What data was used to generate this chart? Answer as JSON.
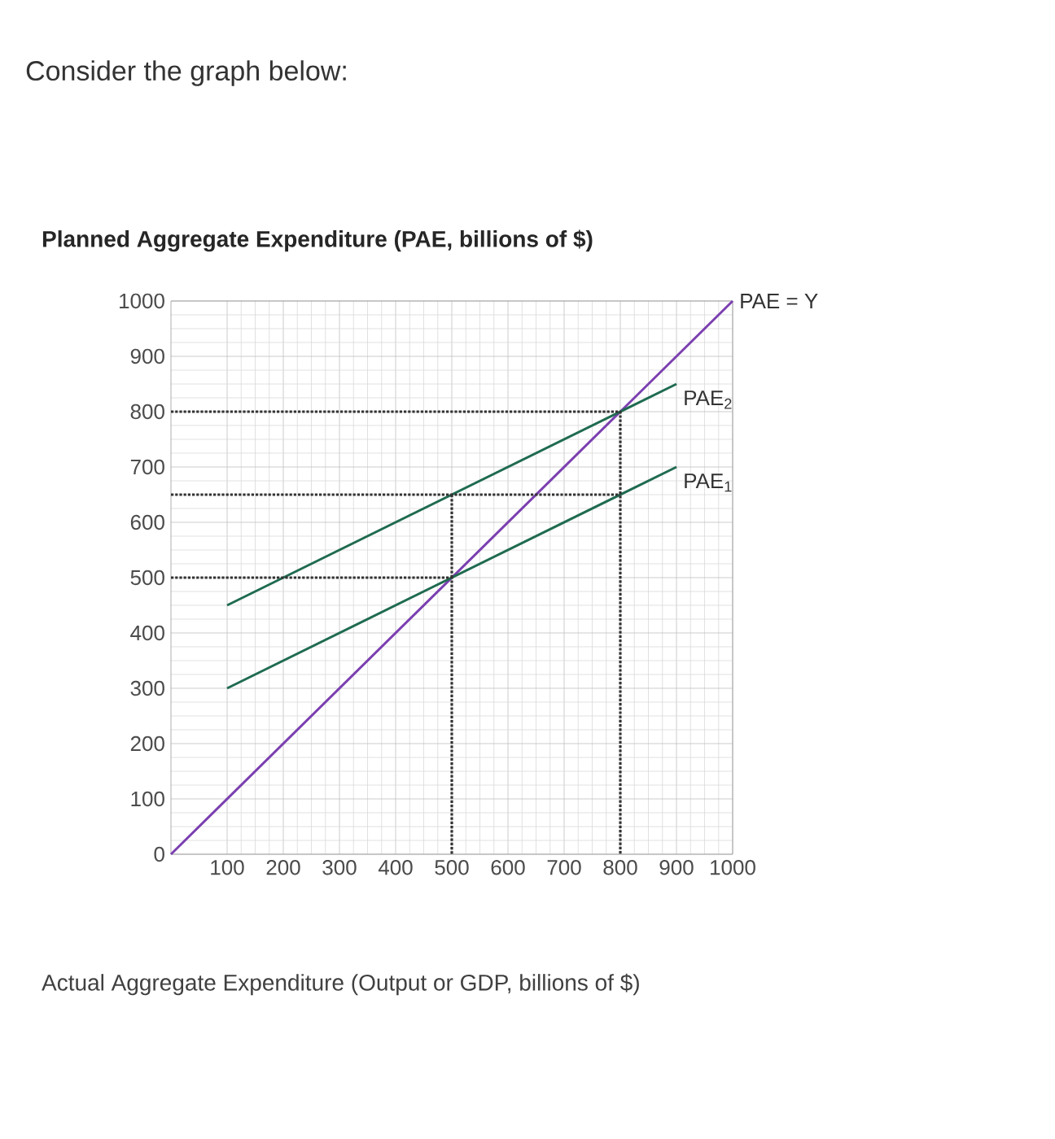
{
  "chart_data": {
    "type": "line",
    "title": "Consider the graph below:",
    "ylabel": "Planned Aggregate Expenditure (PAE, billions of $)",
    "xlabel": "Actual Aggregate Expenditure (Output or GDP, billions of $)",
    "xlim": [
      0,
      1000
    ],
    "ylim": [
      0,
      1000
    ],
    "xticks": [
      100,
      200,
      300,
      400,
      500,
      600,
      700,
      800,
      900,
      1000
    ],
    "yticks": [
      0,
      100,
      200,
      300,
      400,
      500,
      600,
      700,
      800,
      900,
      1000
    ],
    "grid": true,
    "series": [
      {
        "name": "PAE = Y",
        "color": "#7b3fb0",
        "line_style": "solid",
        "x": [
          0,
          1000
        ],
        "values": [
          0,
          1000
        ]
      },
      {
        "name": "PAE$_{2}$",
        "color": "#1f6b50",
        "line_style": "solid",
        "x": [
          100,
          900
        ],
        "values": [
          450,
          850
        ]
      },
      {
        "name": "PAE$_{1}$",
        "color": "#1f6b50",
        "line_style": "solid",
        "x": [
          100,
          900
        ],
        "values": [
          300,
          700
        ]
      },
      {
        "color": "#333333",
        "line_style": "dotted",
        "x": [
          0,
          800,
          800
        ],
        "values": [
          800,
          800,
          0
        ]
      },
      {
        "color": "#333333",
        "line_style": "dotted",
        "x": [
          0,
          800
        ],
        "values": [
          650,
          650
        ]
      },
      {
        "color": "#333333",
        "line_style": "dotted",
        "x": [
          0,
          500,
          500
        ],
        "values": [
          500,
          500,
          0
        ]
      },
      {
        "color": "#333333",
        "line_style": "dotted",
        "x": [
          500,
          500
        ],
        "values": [
          500,
          650
        ]
      }
    ]
  }
}
